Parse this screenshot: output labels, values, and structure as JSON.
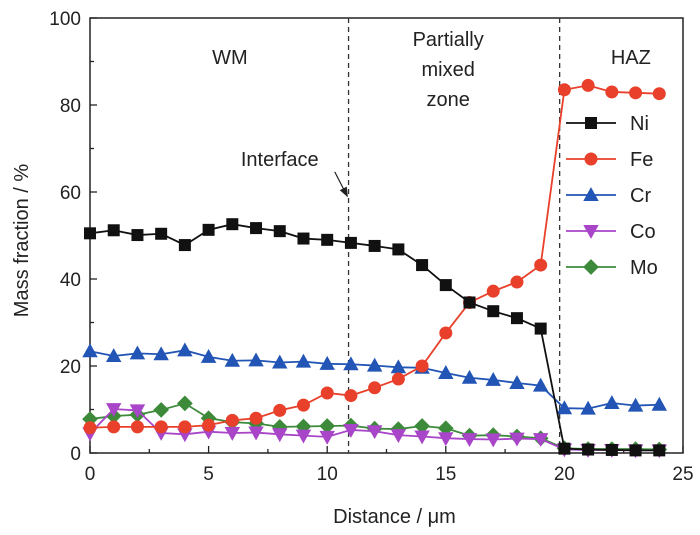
{
  "chart_data": {
    "type": "line",
    "xlabel": "Distance / μm",
    "ylabel": "Mass fraction / %",
    "xlim": [
      0,
      25
    ],
    "ylim": [
      0,
      100
    ],
    "xticks": [
      0,
      5,
      10,
      15,
      20,
      25
    ],
    "yticks": [
      0,
      20,
      40,
      60,
      80,
      100
    ],
    "grid": false,
    "legend_position": "right",
    "vlines": [
      10.9,
      19.8
    ],
    "regions": [
      {
        "lines": [
          "WM"
        ],
        "x": 5.9
      },
      {
        "lines": [
          "Partially",
          "mixed",
          "zone"
        ],
        "x": 15.1
      },
      {
        "lines": [
          "HAZ"
        ],
        "x": 22.8
      }
    ],
    "annotations": [
      {
        "text": "Interface",
        "x_text": 8,
        "y_text": 66,
        "x_arrow": 10.85,
        "y_arrow": 59
      }
    ],
    "x": [
      0,
      1,
      2,
      3,
      4,
      5,
      6,
      7,
      8,
      9,
      10,
      11,
      12,
      13,
      14,
      15,
      16,
      17,
      18,
      19,
      20,
      21,
      22,
      23,
      24
    ],
    "series": [
      {
        "name": "Ni",
        "color": "#111111",
        "marker": "square",
        "values": [
          50.5,
          51.2,
          50.1,
          50.4,
          47.8,
          51.3,
          52.6,
          51.7,
          51.0,
          49.3,
          49.0,
          48.3,
          47.6,
          46.8,
          43.2,
          38.6,
          34.6,
          32.6,
          31.0,
          28.6,
          1.0,
          0.8,
          0.7,
          0.6,
          0.6
        ]
      },
      {
        "name": "Fe",
        "color": "#e8402a",
        "marker": "circle",
        "values": [
          5.8,
          6.0,
          6.0,
          6.0,
          6.0,
          6.4,
          7.5,
          8.0,
          9.8,
          11.0,
          13.8,
          13.2,
          15.0,
          17.0,
          20.0,
          27.6,
          34.6,
          37.2,
          39.3,
          43.2,
          83.5,
          84.5,
          83.0,
          82.8,
          82.6
        ]
      },
      {
        "name": "Cr",
        "color": "#2255b5",
        "marker": "triangle-up",
        "values": [
          23.4,
          22.3,
          22.9,
          22.7,
          23.6,
          22.1,
          21.2,
          21.3,
          20.8,
          21.0,
          20.5,
          20.4,
          20.1,
          19.7,
          19.6,
          18.4,
          17.3,
          16.8,
          16.1,
          15.5,
          10.3,
          10.2,
          11.5,
          10.9,
          11.1
        ]
      },
      {
        "name": "Co",
        "color": "#a845c8",
        "marker": "triangle-down",
        "values": [
          4.5,
          10.1,
          9.8,
          4.6,
          4.3,
          4.9,
          4.6,
          4.7,
          4.3,
          4.0,
          3.7,
          5.3,
          5.0,
          4.1,
          3.8,
          3.4,
          3.2,
          3.1,
          3.3,
          3.2,
          0.8,
          0.7,
          0.7,
          0.6,
          0.6
        ]
      },
      {
        "name": "Mo",
        "color": "#3c8a3a",
        "marker": "diamond",
        "values": [
          7.8,
          8.5,
          8.8,
          9.9,
          11.4,
          8.0,
          7.1,
          6.8,
          6.0,
          6.1,
          6.2,
          6.3,
          5.6,
          5.5,
          6.2,
          5.7,
          4.0,
          4.1,
          3.8,
          3.4,
          1.1,
          0.9,
          0.9,
          0.9,
          0.8
        ]
      }
    ]
  }
}
